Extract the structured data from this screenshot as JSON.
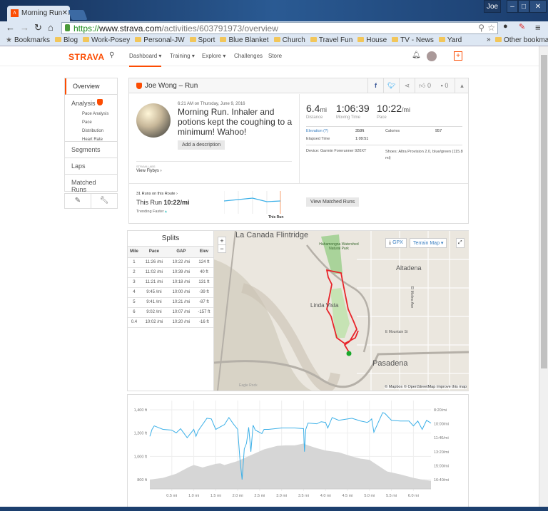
{
  "browser": {
    "tab_title": "Morning Run. Inhaler and",
    "user": "Joe",
    "url_scheme": "https://",
    "url_host": "www.strava.com",
    "url_path": "/activities/603791973/overview",
    "bookmarks": [
      "Bookmarks",
      "Blog",
      "Work-Posey",
      "Personal-JW",
      "Sport",
      "Blue Blanket",
      "Church",
      "Travel  Fun",
      "House",
      "TV - News",
      "Yard"
    ],
    "other_bookmarks": "Other bookmarks"
  },
  "nav": {
    "logo": "STRAVA",
    "items": [
      "Dashboard ▾",
      "Training ▾",
      "Explore ▾",
      "Challenges",
      "Store"
    ]
  },
  "sidebar": {
    "overview": "Overview",
    "analysis": "Analysis",
    "sub": [
      "Pace Analysis",
      "Pace Distribution",
      "Heart Rate"
    ],
    "segments": "Segments",
    "laps": "Laps",
    "matched": "Matched Runs"
  },
  "activity": {
    "header": "Joe Wong – Run",
    "kudos": "0",
    "comments": "0",
    "date": "6:21 AM on Thursday, June 9, 2016",
    "title": "Morning Run. Inhaler and potions kept the coughing to a minimum! Wahoo!",
    "add_description": "Add a description",
    "labs": "STRAVA LABS",
    "flybys": "View Flybys ›",
    "stats": [
      {
        "value": "6.4",
        "unit": "mi",
        "label": "Distance"
      },
      {
        "value": "1:06:39",
        "unit": "",
        "label": "Moving Time"
      },
      {
        "value": "10:22",
        "unit": "/mi",
        "label": "Pace"
      }
    ],
    "elevation_label": "Elevation (?)",
    "elevation": "358ft",
    "calories_label": "Calories",
    "calories": "957",
    "elapsed_label": "Elapsed Time",
    "elapsed": "1:09:51",
    "device": "Device: Garmin Forerunner 920XT",
    "shoes": "Shoes: Altra Provision 2.0, blue/green (115.8 mi)",
    "route_runs": "31 Runs on this Route ›",
    "this_run_label": "This Run",
    "this_run_pace": "10:22/mi",
    "trending": "Trending Faster",
    "this_run_marker": "This Run",
    "view_matched": "View Matched Runs"
  },
  "splits": {
    "title": "Splits",
    "headers": [
      "Mile",
      "Pace",
      "GAP",
      "Elev"
    ],
    "rows": [
      [
        "1",
        "11:26 /mi",
        "10:22 /mi",
        "124 ft"
      ],
      [
        "2",
        "11:02 /mi",
        "10:39 /mi",
        "40 ft"
      ],
      [
        "3",
        "11:21 /mi",
        "10:18 /mi",
        "131 ft"
      ],
      [
        "4",
        "9:45 /mi",
        "10:00 /mi",
        "-39 ft"
      ],
      [
        "5",
        "9:41 /mi",
        "10:21 /mi",
        "-87 ft"
      ],
      [
        "6",
        "9:02 /mi",
        "10:07 /mi",
        "-157 ft"
      ],
      [
        "0.4",
        "10:02 /mi",
        "10:20 /mi",
        "-16 ft"
      ]
    ]
  },
  "map": {
    "labels": [
      "La Canada Flintridge",
      "Hahamongna Watershed Natural Park",
      "Altadena",
      "Linda Vista",
      "Pasadena",
      "E Mountain St",
      "El Molino Ave",
      "Eagle Rock"
    ],
    "gpx": "GPX",
    "map_type": "Terrain Map ▾",
    "zoom_in": "+",
    "zoom_out": "−",
    "attribution": "© Mapbox © OpenStreetMap Improve this map"
  },
  "chart_data": {
    "type": "line",
    "xlabel": "Distance",
    "x_ticks": [
      "0.5 mi",
      "1.0 mi",
      "1.5 mi",
      "2.0 mi",
      "2.5 mi",
      "3.0 mi",
      "3.5 mi",
      "4.0 mi",
      "4.5 mi",
      "5.0 mi",
      "5.5 mi",
      "6.0 mi"
    ],
    "xlim": [
      0,
      6.4
    ],
    "y_left_ticks": [
      "1,400 ft",
      "1,200 ft",
      "1,000 ft",
      "800 ft"
    ],
    "ylim_left": [
      720,
      1480
    ],
    "y_right_ticks": [
      "8:20/mi",
      "10:00/mi",
      "11:40/mi",
      "13:20/mi",
      "15:00/mi",
      "16:40/mi"
    ],
    "ylim_right_sec": [
      433,
      1067
    ],
    "series": [
      {
        "name": "Elevation (ft)",
        "type": "area",
        "x": [
          0,
          0.3,
          0.6,
          0.9,
          1.0,
          1.2,
          1.5,
          1.6,
          1.7,
          2.0,
          2.3,
          2.6,
          2.9,
          3.1,
          3.3,
          3.5,
          3.6,
          3.8,
          4.0,
          4.3,
          4.6,
          4.8,
          5.0,
          5.2,
          5.4,
          5.7,
          6.0,
          6.2,
          6.4
        ],
        "values": [
          800,
          815,
          850,
          910,
          925,
          905,
          935,
          940,
          925,
          960,
          1010,
          1060,
          1090,
          1095,
          1095,
          1110,
          1095,
          1070,
          1050,
          1035,
          1000,
          980,
          970,
          920,
          870,
          845,
          815,
          800,
          790
        ]
      },
      {
        "name": "Pace (sec/mi)",
        "type": "line",
        "x": [
          0,
          0.05,
          0.1,
          0.3,
          0.5,
          0.6,
          0.7,
          0.85,
          1.0,
          1.05,
          1.1,
          1.3,
          1.4,
          1.5,
          1.7,
          1.8,
          1.9,
          2.0,
          2.05,
          2.1,
          2.15,
          2.2,
          2.25,
          2.3,
          2.35,
          2.4,
          2.55,
          2.6,
          2.7,
          3.0,
          3.2,
          3.3,
          3.5,
          3.52,
          3.55,
          3.6,
          3.8,
          3.9,
          4.0,
          4.05,
          4.15,
          4.3,
          4.6,
          4.8,
          4.95,
          5.0,
          5.05,
          5.1,
          5.2,
          5.3,
          5.35,
          5.5,
          5.7,
          5.9,
          6.0,
          6.1,
          6.2,
          6.3,
          6.4
        ],
        "values": [
          690,
          640,
          615,
          640,
          645,
          665,
          635,
          700,
          640,
          690,
          650,
          560,
          565,
          640,
          605,
          555,
          600,
          640,
          850,
          1000,
          780,
          740,
          625,
          800,
          610,
          645,
          670,
          640,
          640,
          630,
          630,
          630,
          635,
          800,
          640,
          595,
          600,
          585,
          590,
          630,
          555,
          575,
          560,
          580,
          590,
          580,
          565,
          660,
          590,
          520,
          525,
          575,
          580,
          580,
          615,
          580,
          640,
          575,
          595
        ]
      }
    ]
  }
}
